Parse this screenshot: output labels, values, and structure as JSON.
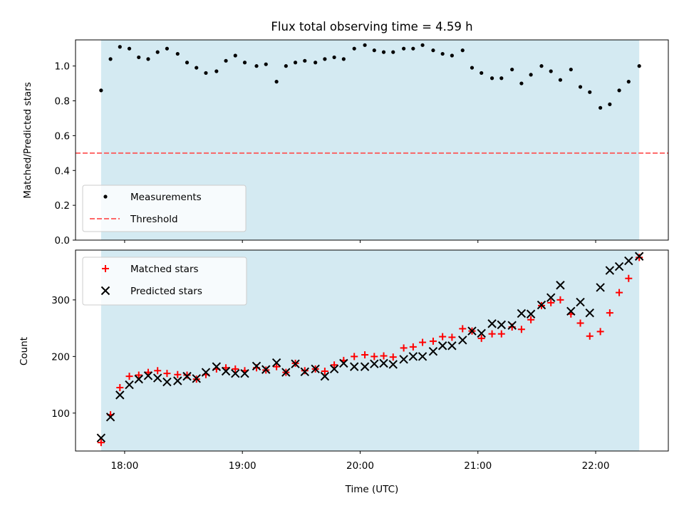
{
  "title": "Flux total observing time = 4.59 h",
  "colors": {
    "shade": "#add8e6",
    "measurement": "#000000",
    "threshold": "#ff4d4d",
    "matched": "#ff0000",
    "predicted": "#000000"
  },
  "chart_data": [
    {
      "type": "scatter",
      "ylabel": "Matched/Predicted stars",
      "ylim": [
        0,
        1.15
      ],
      "xlim": [
        17.583,
        22.617
      ],
      "shade_range": [
        17.8,
        22.37
      ],
      "yticks": [
        0,
        0.2,
        0.4,
        0.6,
        0.8,
        1.0
      ],
      "ytick_labels": [
        "0.0",
        "0.2",
        "0.4",
        "0.6",
        "0.8",
        "1.0"
      ],
      "legend": {
        "position": "bottom-left",
        "entries": [
          "Measurements",
          "Threshold"
        ]
      },
      "threshold": {
        "name": "Threshold",
        "value": 0.5
      },
      "series": [
        {
          "name": "Measurements",
          "x": [
            17.8,
            17.88,
            17.96,
            18.04,
            18.12,
            18.2,
            18.28,
            18.36,
            18.45,
            18.53,
            18.61,
            18.69,
            18.78,
            18.86,
            18.94,
            19.02,
            19.12,
            19.2,
            19.29,
            19.37,
            19.45,
            19.53,
            19.62,
            19.7,
            19.78,
            19.86,
            19.95,
            20.04,
            20.12,
            20.2,
            20.28,
            20.37,
            20.45,
            20.53,
            20.62,
            20.7,
            20.78,
            20.87,
            20.95,
            21.03,
            21.12,
            21.2,
            21.29,
            21.37,
            21.45,
            21.54,
            21.62,
            21.7,
            21.79,
            21.87,
            21.95,
            22.04,
            22.12,
            22.2,
            22.28,
            22.37
          ],
          "y": [
            0.86,
            1.04,
            1.11,
            1.1,
            1.05,
            1.04,
            1.08,
            1.1,
            1.07,
            1.02,
            0.99,
            0.96,
            0.97,
            1.03,
            1.06,
            1.02,
            1.0,
            1.01,
            0.91,
            1.0,
            1.02,
            1.03,
            1.02,
            1.04,
            1.05,
            1.04,
            1.1,
            1.12,
            1.09,
            1.08,
            1.08,
            1.1,
            1.1,
            1.12,
            1.09,
            1.07,
            1.06,
            1.09,
            0.99,
            0.96,
            0.93,
            0.93,
            0.98,
            0.9,
            0.95,
            1.0,
            0.97,
            0.92,
            0.98,
            0.88,
            0.85,
            0.76,
            0.78,
            0.86,
            0.91,
            1.0
          ]
        }
      ]
    },
    {
      "type": "scatter",
      "xlabel": "Time (UTC)",
      "ylabel": "Count",
      "ylim": [
        33,
        388
      ],
      "xlim": [
        17.583,
        22.617
      ],
      "shade_range": [
        17.8,
        22.37
      ],
      "xticks": [
        18,
        19,
        20,
        21,
        22
      ],
      "xtick_labels": [
        "18:00",
        "19:00",
        "20:00",
        "21:00",
        "22:00"
      ],
      "yticks": [
        100,
        200,
        300
      ],
      "ytick_labels": [
        "100",
        "200",
        "300"
      ],
      "legend": {
        "position": "top-left",
        "entries": [
          "Matched stars",
          "Predicted stars"
        ]
      },
      "series": [
        {
          "name": "Matched stars",
          "marker": "+",
          "x": [
            17.8,
            17.88,
            17.96,
            18.04,
            18.12,
            18.2,
            18.28,
            18.36,
            18.45,
            18.53,
            18.61,
            18.69,
            18.78,
            18.86,
            18.94,
            19.02,
            19.12,
            19.2,
            19.29,
            19.37,
            19.45,
            19.53,
            19.62,
            19.7,
            19.78,
            19.86,
            19.95,
            20.04,
            20.12,
            20.2,
            20.28,
            20.37,
            20.45,
            20.53,
            20.62,
            20.7,
            20.78,
            20.87,
            20.95,
            21.03,
            21.12,
            21.2,
            21.29,
            21.37,
            21.45,
            21.54,
            21.62,
            21.7,
            21.79,
            21.87,
            21.95,
            22.04,
            22.12,
            22.2,
            22.28,
            22.37
          ],
          "y": [
            48,
            97,
            145,
            165,
            167,
            172,
            175,
            170,
            168,
            167,
            160,
            168,
            178,
            180,
            178,
            175,
            180,
            176,
            182,
            172,
            188,
            175,
            178,
            174,
            185,
            193,
            200,
            203,
            200,
            201,
            199,
            215,
            217,
            225,
            227,
            235,
            234,
            249,
            245,
            232,
            240,
            240,
            252,
            248,
            265,
            290,
            295,
            300,
            275,
            259,
            236,
            244,
            277,
            313,
            338,
            375
          ]
        },
        {
          "name": "Predicted stars",
          "marker": "x",
          "x": [
            17.8,
            17.88,
            17.96,
            18.04,
            18.12,
            18.2,
            18.28,
            18.36,
            18.45,
            18.53,
            18.61,
            18.69,
            18.78,
            18.86,
            18.94,
            19.02,
            19.12,
            19.2,
            19.29,
            19.37,
            19.45,
            19.53,
            19.62,
            19.7,
            19.78,
            19.86,
            19.95,
            20.04,
            20.12,
            20.2,
            20.28,
            20.37,
            20.45,
            20.53,
            20.62,
            20.7,
            20.78,
            20.87,
            20.95,
            21.03,
            21.12,
            21.2,
            21.29,
            21.37,
            21.45,
            21.54,
            21.62,
            21.7,
            21.79,
            21.87,
            21.95,
            22.04,
            22.12,
            22.2,
            22.28,
            22.37
          ],
          "y": [
            56,
            93,
            132,
            150,
            160,
            166,
            162,
            155,
            157,
            165,
            161,
            172,
            182,
            174,
            170,
            170,
            183,
            177,
            189,
            172,
            187,
            173,
            178,
            165,
            178,
            188,
            182,
            182,
            187,
            188,
            186,
            195,
            200,
            200,
            209,
            219,
            219,
            229,
            245,
            241,
            258,
            256,
            255,
            276,
            275,
            291,
            304,
            326,
            280,
            296,
            277,
            322,
            352,
            359,
            369,
            377
          ]
        }
      ]
    }
  ]
}
